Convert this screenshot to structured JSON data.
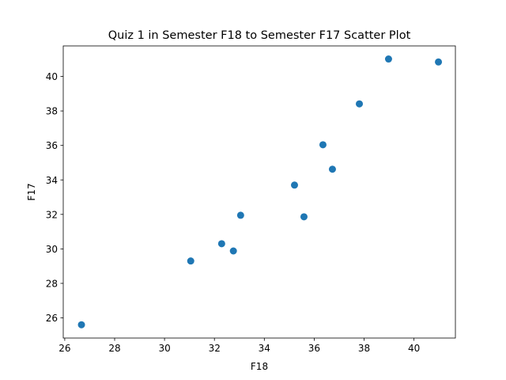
{
  "chart_data": {
    "type": "scatter",
    "title": "Quiz 1 in Semester F18 to Semester F17 Scatter Plot",
    "xlabel": "F18",
    "ylabel": "F17",
    "xlim": [
      25.94,
      41.66
    ],
    "ylim": [
      24.83,
      41.77
    ],
    "xticks": [
      26,
      28,
      30,
      32,
      34,
      36,
      38,
      40
    ],
    "yticks": [
      26,
      28,
      30,
      32,
      34,
      36,
      38,
      40
    ],
    "grid": false,
    "marker_color": "#1f77b4",
    "points": [
      {
        "x": 26.67,
        "y": 25.6
      },
      {
        "x": 31.05,
        "y": 29.3
      },
      {
        "x": 32.29,
        "y": 30.3
      },
      {
        "x": 32.76,
        "y": 29.88
      },
      {
        "x": 33.05,
        "y": 31.95
      },
      {
        "x": 35.21,
        "y": 33.7
      },
      {
        "x": 35.59,
        "y": 31.86
      },
      {
        "x": 36.35,
        "y": 36.04
      },
      {
        "x": 36.73,
        "y": 34.62
      },
      {
        "x": 37.81,
        "y": 38.41
      },
      {
        "x": 38.98,
        "y": 41.01
      },
      {
        "x": 40.98,
        "y": 40.84
      }
    ]
  }
}
